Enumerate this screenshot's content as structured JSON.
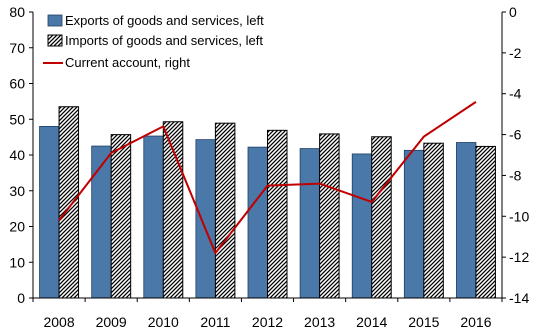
{
  "chart_data": {
    "type": "bar",
    "categories": [
      "2008",
      "2009",
      "2010",
      "2011",
      "2012",
      "2013",
      "2014",
      "2015",
      "2016"
    ],
    "series": [
      {
        "name": "Exports of goods and services, left",
        "type": "bar",
        "axis": "left",
        "color": "#4a78a8",
        "values": [
          48.0,
          42.5,
          45.3,
          44.3,
          42.2,
          41.8,
          40.3,
          41.3,
          43.5
        ]
      },
      {
        "name": "Imports of goods and services, left",
        "type": "bar",
        "axis": "left",
        "pattern": "diagonal-hatch",
        "color": "#000000",
        "values": [
          53.5,
          45.7,
          49.3,
          48.9,
          46.9,
          45.9,
          45.1,
          43.3,
          42.4
        ]
      },
      {
        "name": "Current account, right",
        "type": "line",
        "axis": "right",
        "color": "#c00000",
        "values": [
          -10.2,
          -6.9,
          -5.6,
          -11.8,
          -8.5,
          -8.4,
          -9.3,
          -6.1,
          -4.4
        ]
      }
    ],
    "left_axis": {
      "ylim": [
        0,
        80
      ],
      "ticks": [
        "0",
        "10",
        "20",
        "30",
        "40",
        "50",
        "60",
        "70",
        "80"
      ]
    },
    "right_axis": {
      "ylim": [
        -14,
        0
      ],
      "ticks": [
        "0",
        "-2",
        "-4",
        "-6",
        "-8",
        "-10",
        "-12",
        "-14"
      ]
    },
    "legend_position": "top-left",
    "grid": false
  }
}
